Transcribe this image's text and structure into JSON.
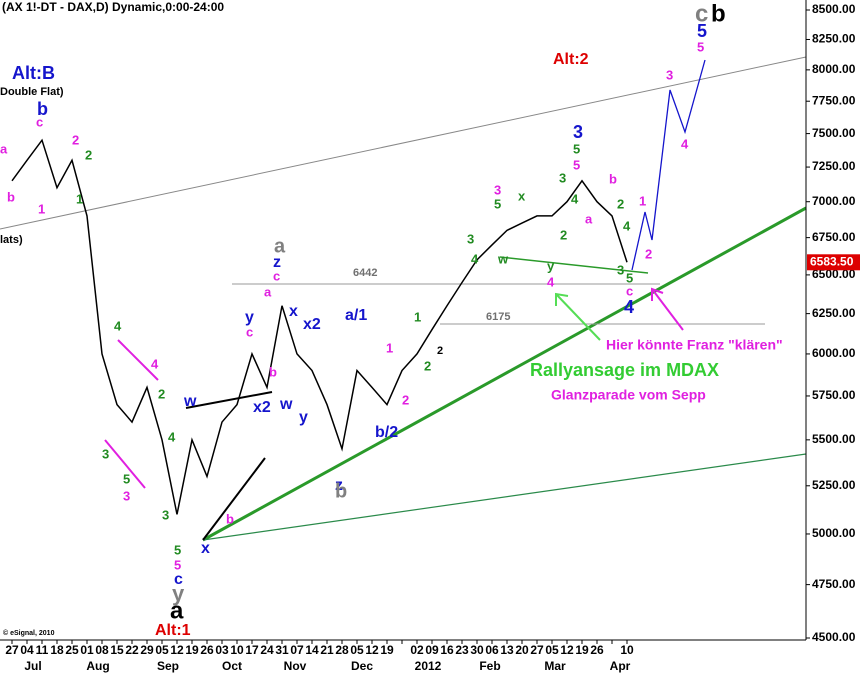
{
  "chart_data": {
    "type": "line",
    "title": "(AX 1!-DT - DAX,D) Dynamic,0:00-24:00",
    "credit": "© eSignal, 2010",
    "log_scale": true,
    "color": "#000000",
    "categories": [
      "27",
      "04",
      "11",
      "18",
      "25",
      "01",
      "08",
      "15",
      "22",
      "29",
      "05",
      "12",
      "19",
      "26",
      "03",
      "10",
      "17",
      "24",
      "31",
      "07",
      "14",
      "21",
      "28",
      "05",
      "12",
      "19",
      null,
      "02",
      "09",
      "16",
      "23",
      "30",
      "06",
      "13",
      "20",
      "27",
      "05",
      "12",
      "19",
      "26",
      null,
      "10"
    ],
    "months": [
      "Jul",
      "Aug",
      "Sep",
      "Oct",
      "Nov",
      "Dec",
      "2012",
      "Feb",
      "Mar",
      "Apr"
    ],
    "values": [
      7150,
      7300,
      7450,
      7100,
      7300,
      6900,
      6000,
      5700,
      5600,
      5800,
      5500,
      5100,
      5500,
      5300,
      5600,
      5700,
      6000,
      5800,
      6300,
      6000,
      5900,
      5700,
      5450,
      5900,
      5800,
      5700,
      5900,
      6000,
      6150,
      6300,
      6450,
      6600,
      6700,
      6800,
      6850,
      6900,
      6900,
      7000,
      7150,
      7000,
      6900,
      6583.5
    ],
    "last": {
      "value": 6583.5,
      "label": "6583.50"
    },
    "ylim": [
      4500,
      8500
    ],
    "yticks": [
      {
        "value": 4500,
        "label": "4500.00"
      },
      {
        "value": 4750,
        "label": "4750.00"
      },
      {
        "value": 5000,
        "label": "5000.00"
      },
      {
        "value": 5250,
        "label": "5250.00"
      },
      {
        "value": 5500,
        "label": "5500.00"
      },
      {
        "value": 5750,
        "label": "5750.00"
      },
      {
        "value": 6000,
        "label": "6000.00"
      },
      {
        "value": 6250,
        "label": "6250.00"
      },
      {
        "value": 6500,
        "label": "6500.00"
      },
      {
        "value": 6750,
        "label": "6750.00"
      },
      {
        "value": 7000,
        "label": "7000.00"
      },
      {
        "value": 7250,
        "label": "7250.00"
      },
      {
        "value": 7500,
        "label": "7500.00"
      },
      {
        "value": 7750,
        "label": "7750.00"
      },
      {
        "value": 8000,
        "label": "8000.00"
      },
      {
        "value": 8250,
        "label": "8250.00"
      },
      {
        "value": 8500,
        "label": "8500.00"
      }
    ],
    "grid": false,
    "annotations": [
      {
        "text": "Alt:B",
        "color": "#1515cc"
      },
      {
        "text": "Double Flat)",
        "color": "#000000"
      },
      {
        "text": "lats)",
        "color": "#000000"
      },
      {
        "text": "Alt:2",
        "color": "#dd0000"
      },
      {
        "text": "Alt:1",
        "color": "#dd0000"
      },
      {
        "text": "c",
        "color": "#808080"
      },
      {
        "text": "b",
        "color": "#000000"
      },
      {
        "text": "5",
        "color": "#1515cc"
      },
      {
        "text": "5",
        "color": "#e020e0"
      },
      {
        "text": "3",
        "color": "#e020e0"
      },
      {
        "text": "4",
        "color": "#e020e0"
      },
      {
        "text": "b",
        "color": "#1515cc"
      },
      {
        "text": "c",
        "color": "#e020e0"
      },
      {
        "text": "2",
        "color": "#e020e0"
      },
      {
        "text": "2",
        "color": "#228b22"
      },
      {
        "text": "1",
        "color": "#228b22"
      },
      {
        "text": "b",
        "color": "#e020e0"
      },
      {
        "text": "1",
        "color": "#e020e0"
      },
      {
        "text": "a",
        "color": "#e020e0"
      },
      {
        "text": "4",
        "color": "#228b22"
      },
      {
        "text": "4",
        "color": "#e020e0"
      },
      {
        "text": "2",
        "color": "#228b22"
      },
      {
        "text": "3",
        "color": "#228b22"
      },
      {
        "text": "5",
        "color": "#228b22"
      },
      {
        "text": "3",
        "color": "#e020e0"
      },
      {
        "text": "4",
        "color": "#228b22"
      },
      {
        "text": "3",
        "color": "#228b22"
      },
      {
        "text": "5",
        "color": "#228b22"
      },
      {
        "text": "5",
        "color": "#e020e0"
      },
      {
        "text": "c",
        "color": "#1515cc"
      },
      {
        "text": "y",
        "color": "#808080"
      },
      {
        "text": "a",
        "color": "#000000"
      },
      {
        "text": "w",
        "color": "#1515cc"
      },
      {
        "text": "x",
        "color": "#1515cc"
      },
      {
        "text": "b",
        "color": "#e020e0"
      },
      {
        "text": "x2",
        "color": "#1515cc"
      },
      {
        "text": "w",
        "color": "#1515cc"
      },
      {
        "text": "y",
        "color": "#1515cc"
      },
      {
        "text": "b",
        "color": "#e020e0"
      },
      {
        "text": "a",
        "color": "#e020e0"
      },
      {
        "text": "c",
        "color": "#e020e0"
      },
      {
        "text": "y",
        "color": "#1515cc"
      },
      {
        "text": "c",
        "color": "#e020e0"
      },
      {
        "text": "z",
        "color": "#1515cc"
      },
      {
        "text": "a",
        "color": "#808080"
      },
      {
        "text": "x",
        "color": "#1515cc"
      },
      {
        "text": "x2",
        "color": "#1515cc"
      },
      {
        "text": "z",
        "color": "#1515cc"
      },
      {
        "text": "b",
        "color": "#808080"
      },
      {
        "text": "a/1",
        "color": "#1515cc"
      },
      {
        "text": "1",
        "color": "#e020e0"
      },
      {
        "text": "2",
        "color": "#e020e0"
      },
      {
        "text": "b/2",
        "color": "#1515cc"
      },
      {
        "text": "1",
        "color": "#228b22"
      },
      {
        "text": "2",
        "color": "#228b22"
      },
      {
        "text": "2",
        "color": "#000000"
      },
      {
        "text": "3",
        "color": "#228b22"
      },
      {
        "text": "4",
        "color": "#228b22"
      },
      {
        "text": "5",
        "color": "#228b22"
      },
      {
        "text": "3",
        "color": "#e020e0"
      },
      {
        "text": "w",
        "color": "#228b22"
      },
      {
        "text": "x",
        "color": "#228b22"
      },
      {
        "text": "y",
        "color": "#228b22"
      },
      {
        "text": "4",
        "color": "#e020e0"
      },
      {
        "text": "2",
        "color": "#228b22"
      },
      {
        "text": "3",
        "color": "#228b22"
      },
      {
        "text": "5",
        "color": "#e020e0"
      },
      {
        "text": "3",
        "color": "#1515cc"
      },
      {
        "text": "5",
        "color": "#228b22"
      },
      {
        "text": "4",
        "color": "#228b22"
      },
      {
        "text": "a",
        "color": "#e020e0"
      },
      {
        "text": "b",
        "color": "#e020e0"
      },
      {
        "text": "2",
        "color": "#228b22"
      },
      {
        "text": "4",
        "color": "#228b22"
      },
      {
        "text": "3",
        "color": "#228b22"
      },
      {
        "text": "5",
        "color": "#228b22"
      },
      {
        "text": "c",
        "color": "#e020e0"
      },
      {
        "text": "4",
        "color": "#1515cc"
      },
      {
        "text": "1",
        "color": "#e020e0"
      },
      {
        "text": "2",
        "color": "#e020e0"
      },
      {
        "text": "6442",
        "color": "#707070"
      },
      {
        "text": "6175",
        "color": "#707070"
      },
      {
        "text": "Rallyansage im MDAX",
        "color": "#33cc33"
      },
      {
        "text": "Glanzparade vom Sepp",
        "color": "#e020e0"
      },
      {
        "text": "Hier könnte Franz \"klären\"",
        "color": "#e020e0"
      }
    ]
  }
}
